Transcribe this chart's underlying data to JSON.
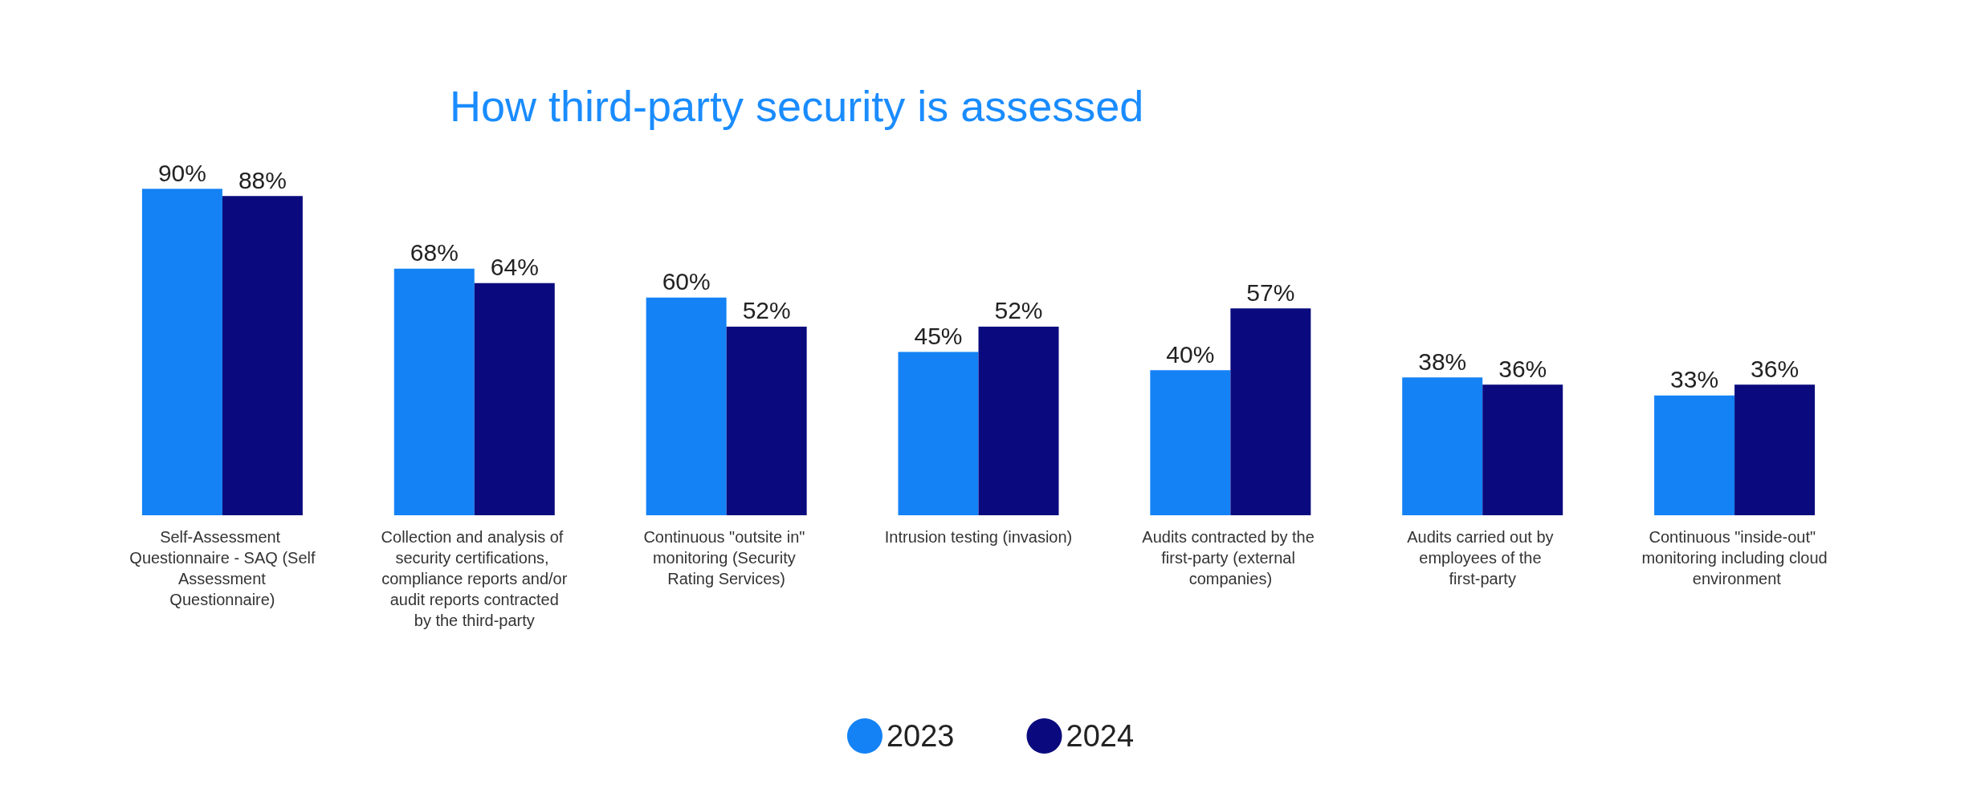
{
  "chart_data": {
    "type": "bar",
    "title": "How third-party security is assessed",
    "categories": [
      "Self-Assessment Questionnaire - SAQ (Self Assessment Questionnaire)",
      "Collection and analysis of security certifications, compliance reports and/or audit reports contracted by the third-party",
      "Continuous \"outsite in\" monitoring (Security Rating Services)",
      "Intrusion testing (invasion)",
      "Audits contracted by the first-party (external companies)",
      "Audits carried out by employees of the first-party",
      "Continuous \"inside-out\" monitoring including cloud environment"
    ],
    "series": [
      {
        "name": "2023",
        "color": "#1482f5",
        "values": [
          90,
          68,
          60,
          45,
          40,
          38,
          33
        ],
        "value_labels": [
          "90%",
          "68%",
          "60%",
          "45%",
          "40%",
          "38%",
          "33%"
        ]
      },
      {
        "name": "2024",
        "color": "#0a0a7e",
        "values": [
          88,
          64,
          52,
          52,
          57,
          36,
          36
        ],
        "value_labels": [
          "88%",
          "64%",
          "52%",
          "52%",
          "57%",
          "36%",
          "36%"
        ]
      }
    ],
    "legend": "bottom",
    "grid": false
  }
}
